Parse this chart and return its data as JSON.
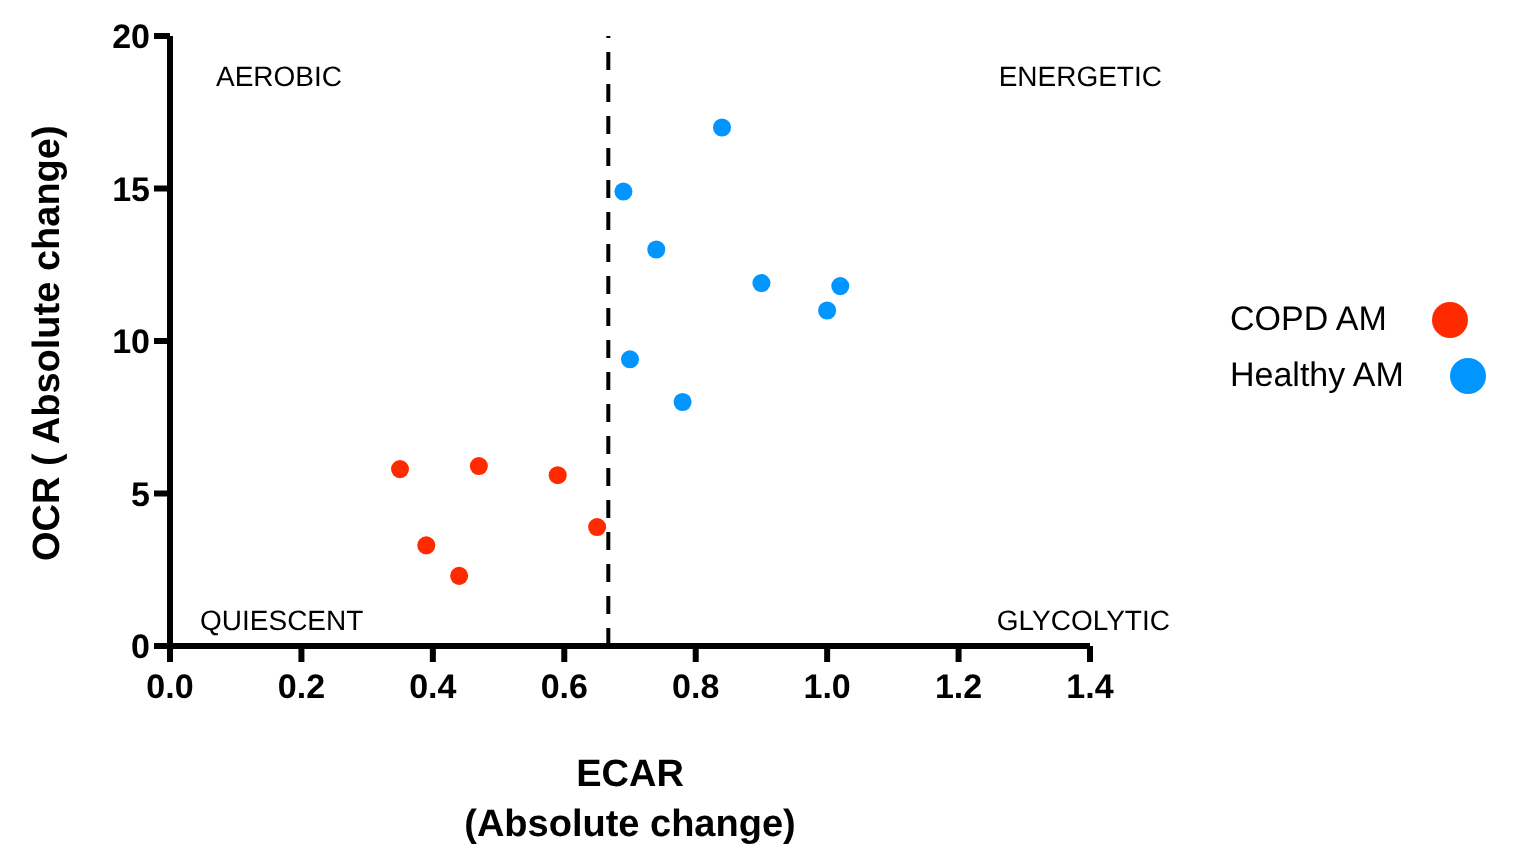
{
  "chart_data": {
    "type": "scatter",
    "xlabel": "ECAR\n(Absolute change)",
    "ylabel": "OCR ( Absolute change)",
    "annotations": [
      "AEROBIC",
      "ENERGETIC",
      "QUIESCENT",
      "GLYCOLYTIC"
    ],
    "series": [
      {
        "name": "COPD AM",
        "color": "#ff2a00",
        "x": [
          0.35,
          0.47,
          0.59,
          0.65,
          0.39,
          0.44
        ],
        "values": [
          5.8,
          5.9,
          5.6,
          3.9,
          3.3,
          2.3
        ]
      },
      {
        "name": "Healthy AM",
        "color": "#0095ff",
        "x": [
          0.84,
          0.69,
          0.74,
          0.9,
          1.02,
          1.0,
          0.7,
          0.78
        ],
        "values": [
          17.0,
          14.9,
          13.0,
          11.9,
          11.8,
          11.0,
          9.4,
          8.0
        ]
      }
    ],
    "xlim": [
      0,
      1.4
    ],
    "ylim": [
      0,
      20
    ],
    "xticks": [
      {
        "value": 0,
        "label": "0.0"
      },
      {
        "value": 0.2,
        "label": "0.2"
      },
      {
        "value": 0.4,
        "label": "0.4"
      },
      {
        "value": 0.6,
        "label": "0.6"
      },
      {
        "value": 0.8,
        "label": "0.8"
      },
      {
        "value": 1,
        "label": "1.0"
      },
      {
        "value": 1.2,
        "label": "1.2"
      },
      {
        "value": 1.4,
        "label": "1.4"
      }
    ],
    "yticks": [
      0,
      5,
      10,
      15,
      20
    ],
    "ref_lines": [
      {
        "axis": "x",
        "value": 0.667,
        "color": "#000000",
        "line_style": "dashed"
      }
    ],
    "legend": "right",
    "marker": "circle",
    "grid": false
  }
}
